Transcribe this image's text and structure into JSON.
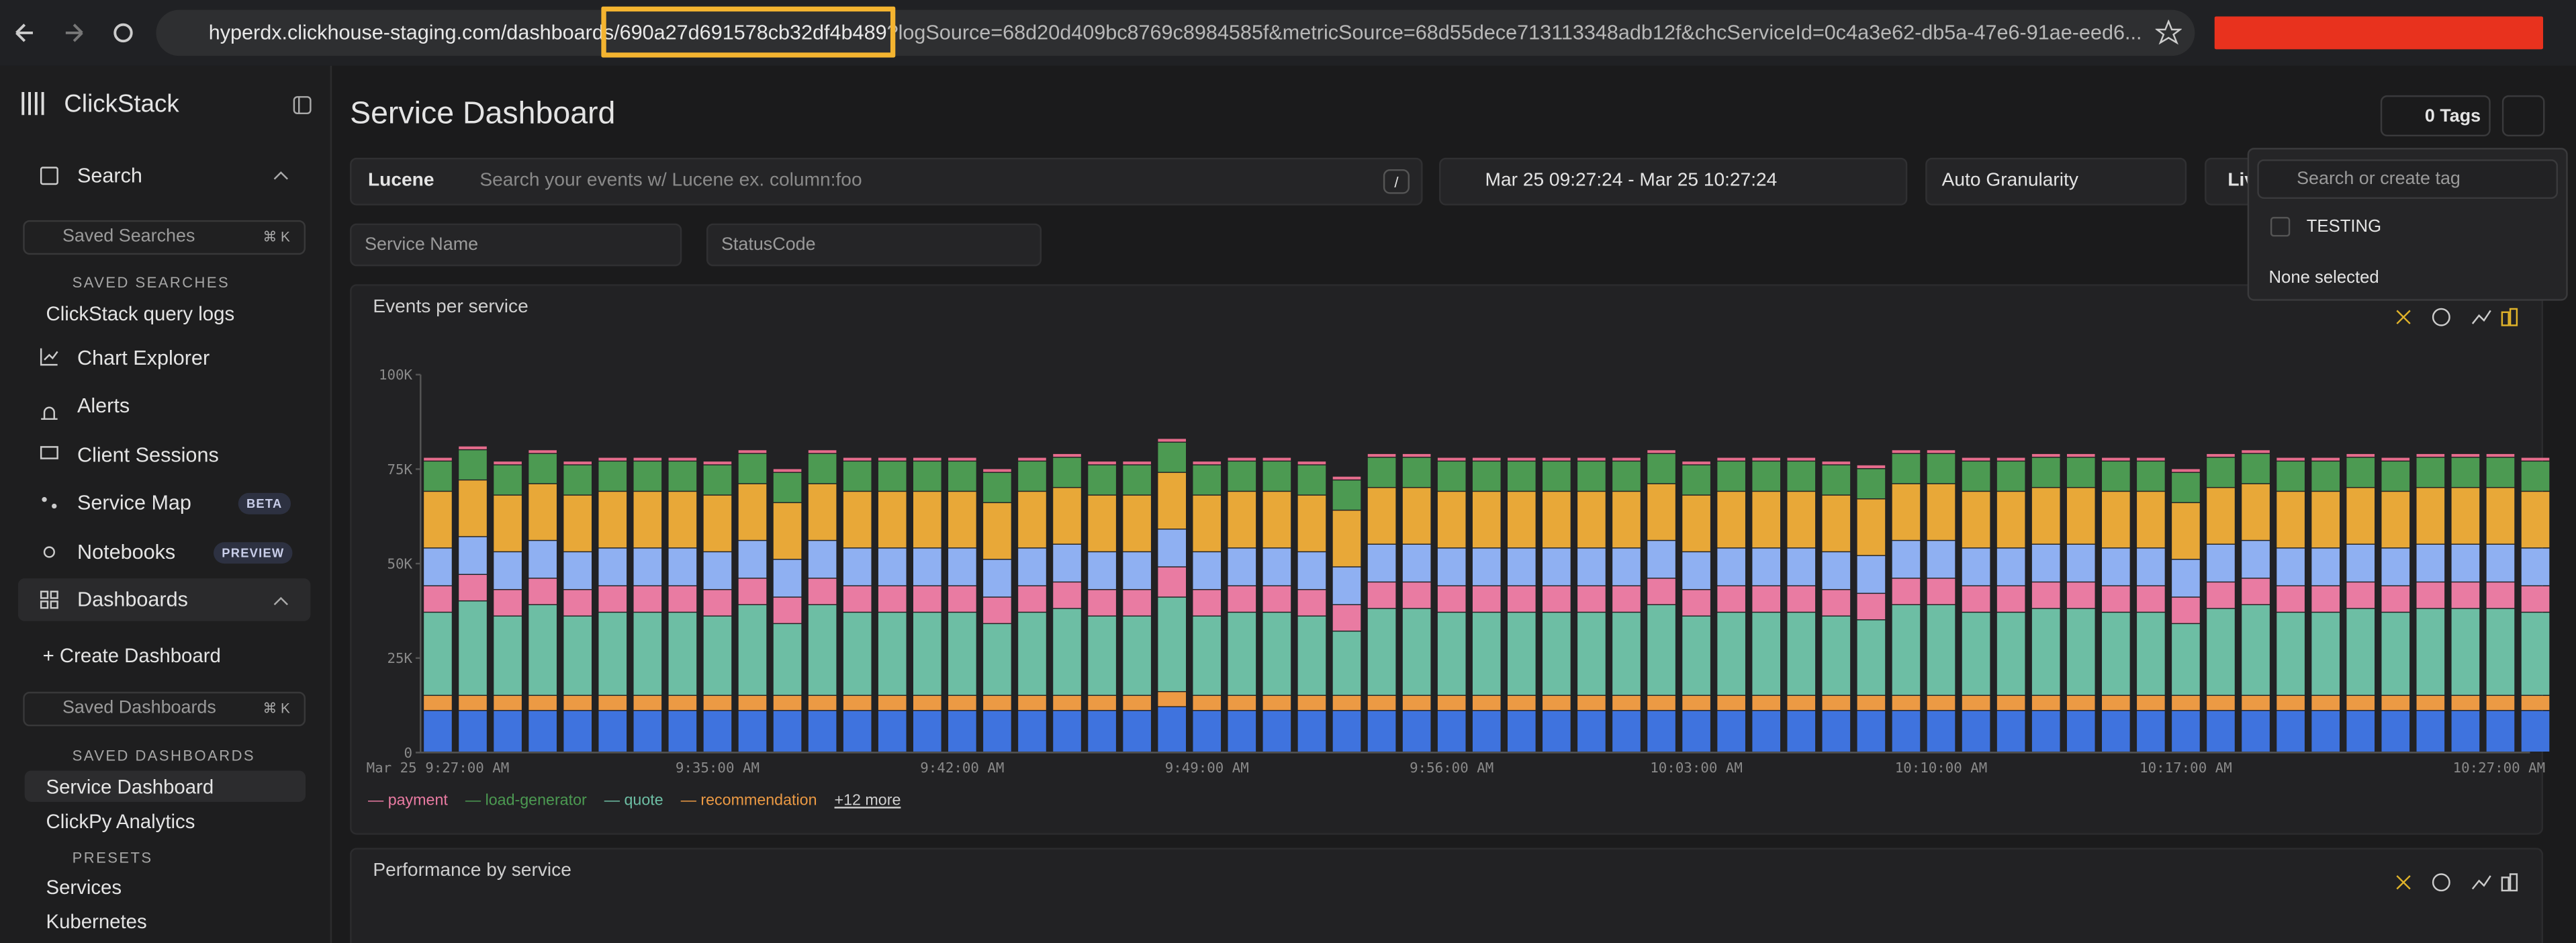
{
  "browser": {
    "url_start": "hyperdx.clickhouse-staging.com/dashboards/",
    "url_id": "690a27d691578cb32df4b489",
    "url_rest": "?logSource=68d20d409bc8769c8984585f&metricSource=68d55dece713113348adb12f&chcServiceId=0c4a3e62-db5a-47e6-91ae-eed6..."
  },
  "sidebar": {
    "brand": "ClickStack",
    "search": "Search",
    "saved_searches_placeholder": "Saved Searches",
    "shortcut": "⌘ K",
    "saved_searches_heading": "SAVED SEARCHES",
    "saved_searches": [
      "ClickStack query logs"
    ],
    "nav": [
      "Chart Explorer",
      "Alerts",
      "Client Sessions",
      "Service Map",
      "Notebooks"
    ],
    "badges": {
      "service_map": "BETA",
      "notebooks": "PREVIEW"
    },
    "dashboards": "Dashboards",
    "create_dashboard": "Create Dashboard",
    "saved_dashboards_placeholder": "Saved Dashboards",
    "saved_dashboards_heading": "SAVED DASHBOARDS",
    "saved_dashboards": [
      "Service Dashboard",
      "ClickPy Analytics"
    ],
    "presets_heading": "PRESETS",
    "presets": [
      "Services",
      "Kubernetes"
    ]
  },
  "header": {
    "title": "Service Dashboard",
    "tags_button": "0 Tags"
  },
  "filters": {
    "language": "Lucene",
    "search_placeholder": "Search your events w/ Lucene ex. column:foo",
    "shortcut": "/",
    "time_range": "Mar 25 09:27:24 - Mar 25 10:27:24",
    "granularity": "Auto Granularity",
    "live": "Live",
    "service_name": "Service Name",
    "status_code": "StatusCode"
  },
  "tag_menu": {
    "search_placeholder": "Search or create tag",
    "tags": [
      "TESTING"
    ],
    "status": "None selected"
  },
  "chart_data": {
    "type": "stacked-bar",
    "title": "Events per service",
    "legend_more": "+12 more",
    "categories": [
      "Mar 25 9:27:00 AM",
      null,
      null,
      null,
      null,
      null,
      null,
      null,
      "9:35:00 AM",
      null,
      null,
      null,
      null,
      null,
      null,
      "9:42:00 AM",
      null,
      null,
      null,
      null,
      null,
      null,
      "9:49:00 AM",
      null,
      null,
      null,
      null,
      null,
      null,
      "9:56:00 AM",
      null,
      null,
      null,
      null,
      null,
      null,
      "10:03:00 AM",
      null,
      null,
      null,
      null,
      null,
      null,
      "10:10:00 AM",
      null,
      null,
      null,
      null,
      null,
      null,
      "10:17:00 AM",
      null,
      null,
      null,
      null,
      null,
      null,
      null,
      null,
      null,
      "10:27:00 AM"
    ],
    "ylim": [
      0,
      100000
    ],
    "yticks": [
      0,
      {
        "value": 25000,
        "label": "25K"
      },
      {
        "value": 50000,
        "label": "50K"
      },
      {
        "value": 75000,
        "label": "75K"
      },
      {
        "value": 100000,
        "label": "100K"
      }
    ],
    "series": [
      {
        "color": "#3f73de",
        "values": [
          11000,
          11000,
          11000,
          11000,
          11000,
          11000,
          11000,
          11000,
          11000,
          11000,
          11000,
          11000,
          11000,
          11000,
          11000,
          11000,
          11000,
          11000,
          11000,
          11000,
          11000,
          12000,
          11000,
          11000,
          11000,
          11000,
          11000,
          11000,
          11000,
          11000,
          11000,
          11000,
          11000,
          11000,
          11000,
          11000,
          11000,
          11000,
          11000,
          11000,
          11000,
          11000,
          11000,
          11000,
          11000,
          11000,
          11000,
          11000,
          11000,
          11000,
          11000,
          11000,
          11000,
          11000,
          11000,
          11000,
          11000,
          11000,
          11000,
          11000,
          11000
        ]
      },
      {
        "name": "recommendation",
        "color": "#ec9a44",
        "values": [
          4000,
          4000,
          4000,
          4000,
          4000,
          4000,
          4000,
          4000,
          4000,
          4000,
          4000,
          4000,
          4000,
          4000,
          4000,
          4000,
          4000,
          4000,
          4000,
          4000,
          4000,
          4000,
          4000,
          4000,
          4000,
          4000,
          4000,
          4000,
          4000,
          4000,
          4000,
          4000,
          4000,
          4000,
          4000,
          4000,
          4000,
          4000,
          4000,
          4000,
          4000,
          4000,
          4000,
          4000,
          4000,
          4000,
          4000,
          4000,
          4000,
          4000,
          4000,
          4000,
          4000,
          4000,
          4000,
          4000,
          4000,
          4000,
          4000,
          4000,
          4000
        ]
      },
      {
        "name": "quote",
        "color": "#6dbea4",
        "values": [
          22000,
          25000,
          21000,
          24000,
          21000,
          22000,
          22000,
          22000,
          21000,
          24000,
          19000,
          24000,
          22000,
          22000,
          22000,
          22000,
          19000,
          22000,
          23000,
          21000,
          21000,
          25000,
          21000,
          22000,
          22000,
          21000,
          17000,
          23000,
          23000,
          22000,
          22000,
          22000,
          22000,
          22000,
          22000,
          24000,
          21000,
          22000,
          22000,
          22000,
          21000,
          20000,
          24000,
          24000,
          22000,
          22000,
          23000,
          23000,
          22000,
          22000,
          19000,
          23000,
          24000,
          22000,
          22000,
          23000,
          22000,
          23000,
          23000,
          23000,
          22000
        ]
      },
      {
        "name": "payment",
        "color": "#e97ba2",
        "values": [
          7000,
          7000,
          7000,
          7000,
          7000,
          7000,
          7000,
          7000,
          7000,
          7000,
          7000,
          7000,
          7000,
          7000,
          7000,
          7000,
          7000,
          7000,
          7000,
          7000,
          7000,
          8000,
          7000,
          7000,
          7000,
          7000,
          7000,
          7000,
          7000,
          7000,
          7000,
          7000,
          7000,
          7000,
          7000,
          7000,
          7000,
          7000,
          7000,
          7000,
          7000,
          7000,
          7000,
          7000,
          7000,
          7000,
          7000,
          7000,
          7000,
          7000,
          7000,
          7000,
          7000,
          7000,
          7000,
          7000,
          7000,
          7000,
          7000,
          7000,
          7000
        ]
      },
      {
        "color": "#8fb0f2",
        "values": [
          10000,
          10000,
          10000,
          10000,
          10000,
          10000,
          10000,
          10000,
          10000,
          10000,
          10000,
          10000,
          10000,
          10000,
          10000,
          10000,
          10000,
          10000,
          10000,
          10000,
          10000,
          10000,
          10000,
          10000,
          10000,
          10000,
          10000,
          10000,
          10000,
          10000,
          10000,
          10000,
          10000,
          10000,
          10000,
          10000,
          10000,
          10000,
          10000,
          10000,
          10000,
          10000,
          10000,
          10000,
          10000,
          10000,
          10000,
          10000,
          10000,
          10000,
          10000,
          10000,
          10000,
          10000,
          10000,
          10000,
          10000,
          10000,
          10000,
          10000,
          10000
        ]
      },
      {
        "color": "#e8a838",
        "values": [
          15000,
          15000,
          15000,
          15000,
          15000,
          15000,
          15000,
          15000,
          15000,
          15000,
          15000,
          15000,
          15000,
          15000,
          15000,
          15000,
          15000,
          15000,
          15000,
          15000,
          15000,
          15000,
          15000,
          15000,
          15000,
          15000,
          15000,
          15000,
          15000,
          15000,
          15000,
          15000,
          15000,
          15000,
          15000,
          15000,
          15000,
          15000,
          15000,
          15000,
          15000,
          15000,
          15000,
          15000,
          15000,
          15000,
          15000,
          15000,
          15000,
          15000,
          15000,
          15000,
          15000,
          15000,
          15000,
          15000,
          15000,
          15000,
          15000,
          15000,
          15000
        ]
      },
      {
        "name": "load-generator",
        "color": "#4c9a52",
        "values": [
          8000,
          8000,
          8000,
          8000,
          8000,
          8000,
          8000,
          8000,
          8000,
          8000,
          8000,
          8000,
          8000,
          8000,
          8000,
          8000,
          8000,
          8000,
          8000,
          8000,
          8000,
          8000,
          8000,
          8000,
          8000,
          8000,
          8000,
          8000,
          8000,
          8000,
          8000,
          8000,
          8000,
          8000,
          8000,
          8000,
          8000,
          8000,
          8000,
          8000,
          8000,
          8000,
          8000,
          8000,
          8000,
          8000,
          8000,
          8000,
          8000,
          8000,
          8000,
          8000,
          8000,
          8000,
          8000,
          8000,
          8000,
          8000,
          8000,
          8000,
          8000
        ]
      },
      {
        "color": "#e56c8c",
        "values": [
          1000,
          1000,
          1000,
          1000,
          1000,
          1000,
          1000,
          1000,
          1000,
          1000,
          1000,
          1000,
          1000,
          1000,
          1000,
          1000,
          1000,
          1000,
          1000,
          1000,
          1000,
          1000,
          1000,
          1000,
          1000,
          1000,
          1000,
          1000,
          1000,
          1000,
          1000,
          1000,
          1000,
          1000,
          1000,
          1000,
          1000,
          1000,
          1000,
          1000,
          1000,
          1000,
          1000,
          1000,
          1000,
          1000,
          1000,
          1000,
          1000,
          1000,
          1000,
          1000,
          1000,
          1000,
          1000,
          1000,
          1000,
          1000,
          1000,
          1000,
          1000
        ]
      }
    ]
  },
  "panel2": {
    "title": "Performance by service"
  }
}
